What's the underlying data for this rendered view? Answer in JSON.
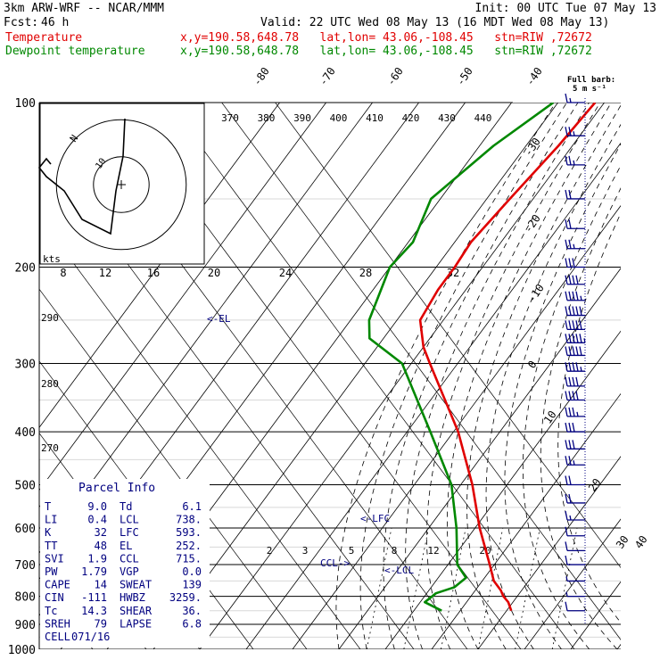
{
  "header": {
    "model": "3km ARW-WRF -- NCAR/MMM",
    "init": "Init: 00 UTC Tue 07 May 13",
    "fcst_label": "Fcst:",
    "fcst_value": "46 h",
    "valid": "Valid: 22 UTC Wed 08 May 13 (16 MDT Wed 08 May 13)",
    "temp_label": "Temperature",
    "dew_label": "Dewpoint temperature",
    "location": "x,y=190.58,648.78   lat,lon= 43.06,-108.45   stn=RIW ,72672"
  },
  "wind_legend": {
    "line1": "Full barb:",
    "line2": "5 m s⁻¹"
  },
  "colors": {
    "temperature": "#e00000",
    "dewpoint": "#008800",
    "barbs": "#000080",
    "labels": "#000080",
    "axes": "#000000",
    "dry_adiabat": "#000000",
    "moist_adiabat": "#000000",
    "mixing_ratio": "#000000"
  },
  "chart_data": {
    "type": "line",
    "subtype": "skew-T log-p sounding",
    "pressure_levels": [
      100,
      200,
      300,
      400,
      500,
      600,
      700,
      800,
      900,
      1000
    ],
    "y_tick_labels": [
      "100",
      "200",
      "300",
      "400",
      "500",
      "600",
      "700",
      "800",
      "900",
      "1000"
    ],
    "isotherm_labels": [
      "-80",
      "-70",
      "-60",
      "-50",
      "-40",
      "-30",
      "-20",
      "-10",
      "0",
      "10",
      "20",
      "30",
      "40"
    ],
    "theta_e_labels": [
      "370",
      "380",
      "390",
      "400",
      "410",
      "420",
      "430",
      "440"
    ],
    "theta_e_side_labels": [
      "290",
      "280",
      "270"
    ],
    "mixing_ratio_labels": [
      "2",
      "3",
      "5",
      "8",
      "12",
      "20"
    ],
    "hodograph": {
      "speed_unit": "kts",
      "ring_labels": [
        "8",
        "12",
        "16",
        "20",
        "24",
        "28",
        "32"
      ],
      "inner_labels": [
        "N",
        "10"
      ],
      "trace": [
        [
          -12,
          -5
        ],
        [
          -10,
          0
        ],
        [
          -8,
          6
        ],
        [
          -4,
          12
        ],
        [
          -1,
          18
        ],
        [
          1,
          27
        ],
        [
          2,
          35
        ]
      ]
    },
    "series": [
      {
        "name": "Temperature",
        "points": [
          [
            100,
            -52
          ],
          [
            120,
            -53
          ],
          [
            150,
            -55
          ],
          [
            180,
            -56.5
          ],
          [
            200,
            -56
          ],
          [
            220,
            -56
          ],
          [
            250,
            -55
          ],
          [
            280,
            -50
          ],
          [
            300,
            -46
          ],
          [
            400,
            -29
          ],
          [
            500,
            -17.5
          ],
          [
            600,
            -9
          ],
          [
            700,
            -1
          ],
          [
            750,
            2.5
          ],
          [
            780,
            5.5
          ],
          [
            800,
            7
          ],
          [
            820,
            9
          ],
          [
            850,
            11
          ]
        ]
      },
      {
        "name": "Dewpoint temperature",
        "points": [
          [
            100,
            -61
          ],
          [
            120,
            -67
          ],
          [
            150,
            -72
          ],
          [
            180,
            -69
          ],
          [
            200,
            -70
          ],
          [
            250,
            -66
          ],
          [
            270,
            -63
          ],
          [
            300,
            -52
          ],
          [
            400,
            -35
          ],
          [
            500,
            -22
          ],
          [
            600,
            -14
          ],
          [
            700,
            -8
          ],
          [
            740,
            -4
          ],
          [
            770,
            -5
          ],
          [
            790,
            -8
          ],
          [
            820,
            -9
          ],
          [
            850,
            -4
          ]
        ]
      }
    ],
    "annotations": {
      "el_label": "<-EL",
      "lfc_label": "<-LFC",
      "ccl_label": "CCL->",
      "lcl_label": "<-LCL",
      "parcel_info_title": "Parcel Info"
    },
    "parcel_info": [
      {
        "l1": "T",
        "v1": "9.0",
        "l2": "Td",
        "v2": "6.1"
      },
      {
        "l1": "LI",
        "v1": "0.4",
        "l2": "LCL",
        "v2": "738."
      },
      {
        "l1": "K",
        "v1": "32",
        "l2": "LFC",
        "v2": "593."
      },
      {
        "l1": "TT",
        "v1": "48",
        "l2": "EL",
        "v2": "252."
      },
      {
        "l1": "SVI",
        "v1": "1.9",
        "l2": "CCL",
        "v2": "715."
      },
      {
        "l1": "PW",
        "v1": "1.79",
        "l2": "VGP",
        "v2": "0.0"
      },
      {
        "l1": "CAPE",
        "v1": "14",
        "l2": "SWEAT",
        "v2": "139"
      },
      {
        "l1": "CIN",
        "v1": "-111",
        "l2": "HWBZ",
        "v2": "3259."
      },
      {
        "l1": "Tc",
        "v1": "14.3",
        "l2": "SHEAR",
        "v2": "36."
      },
      {
        "l1": "SREH",
        "v1": "79",
        "l2": "LAPSE",
        "v2": "6.8"
      },
      {
        "l1": "CELL",
        "v1": "071/16",
        "l2": "",
        "v2": ""
      }
    ],
    "wind_barbs": [
      {
        "p": 100,
        "speed_ms": 7
      },
      {
        "p": 115,
        "speed_ms": 12
      },
      {
        "p": 130,
        "speed_ms": 12
      },
      {
        "p": 150,
        "speed_ms": 10
      },
      {
        "p": 170,
        "speed_ms": 10
      },
      {
        "p": 185,
        "speed_ms": 12
      },
      {
        "p": 200,
        "speed_ms": 15
      },
      {
        "p": 215,
        "speed_ms": 20
      },
      {
        "p": 230,
        "speed_ms": 22
      },
      {
        "p": 245,
        "speed_ms": 25
      },
      {
        "p": 260,
        "speed_ms": 25
      },
      {
        "p": 275,
        "speed_ms": 27
      },
      {
        "p": 290,
        "speed_ms": 25
      },
      {
        "p": 310,
        "speed_ms": 22
      },
      {
        "p": 330,
        "speed_ms": 20
      },
      {
        "p": 350,
        "speed_ms": 20
      },
      {
        "p": 375,
        "speed_ms": 17
      },
      {
        "p": 400,
        "speed_ms": 15
      },
      {
        "p": 430,
        "speed_ms": 15
      },
      {
        "p": 460,
        "speed_ms": 12
      },
      {
        "p": 500,
        "speed_ms": 10
      },
      {
        "p": 540,
        "speed_ms": 10
      },
      {
        "p": 580,
        "speed_ms": 7
      },
      {
        "p": 620,
        "speed_ms": 5
      },
      {
        "p": 660,
        "speed_ms": 5
      },
      {
        "p": 700,
        "speed_ms": 5
      },
      {
        "p": 750,
        "speed_ms": 2
      },
      {
        "p": 800,
        "speed_ms": 2
      },
      {
        "p": 850,
        "speed_ms": 5
      }
    ]
  }
}
